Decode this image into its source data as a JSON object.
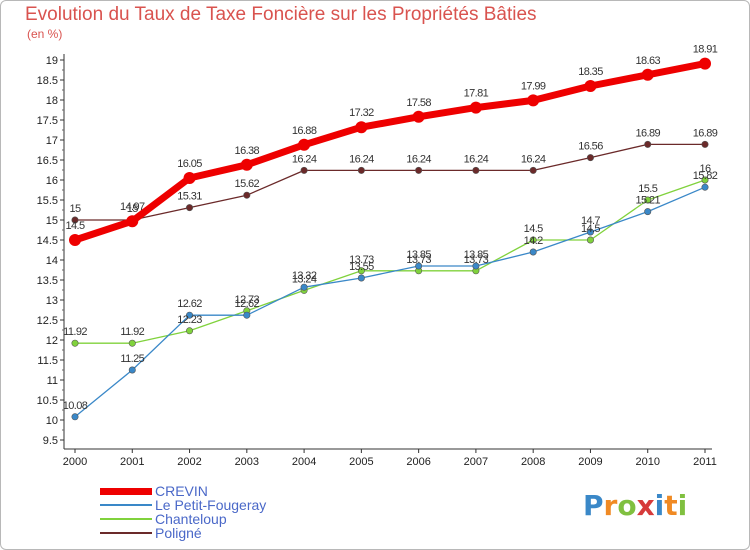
{
  "chart_data": {
    "type": "line",
    "title": "Evolution du Taux de Taxe Foncière sur les Propriétés Bâties",
    "subtitle": "(en %)",
    "xlabel": "",
    "ylabel": "",
    "categories": [
      "2000",
      "2001",
      "2002",
      "2003",
      "2004",
      "2005",
      "2006",
      "2007",
      "2008",
      "2009",
      "2010",
      "2011"
    ],
    "ylim": [
      9.5,
      19
    ],
    "yticks": [
      9.5,
      10,
      10.5,
      11,
      11.5,
      12,
      12.5,
      13,
      13.5,
      14,
      14.5,
      15,
      15.5,
      16,
      16.5,
      17,
      17.5,
      18,
      18.5,
      19
    ],
    "grid": false,
    "legend_position": "bottom-left",
    "series": [
      {
        "name": "CREVIN",
        "color": "#ee0000",
        "values": [
          14.5,
          14.97,
          16.05,
          16.38,
          16.88,
          17.32,
          17.58,
          17.81,
          17.99,
          18.35,
          18.63,
          18.91
        ],
        "labels": [
          "14.5",
          "14.97",
          "16.05",
          "16.38",
          "16.88",
          "17.32",
          "17.58",
          "17.81",
          "17.99",
          "18.35",
          "18.63",
          "18.91"
        ]
      },
      {
        "name": "Le Petit-Fougeray",
        "color": "#3a88c8",
        "values": [
          10.08,
          11.25,
          12.62,
          12.62,
          13.32,
          13.55,
          13.85,
          13.85,
          14.2,
          14.7,
          15.21,
          15.82
        ],
        "labels": [
          "10.08",
          "11.25",
          "12.62",
          "12.62",
          "13.32",
          "13.55",
          "13.85",
          "13.85",
          "14.2",
          "14.7",
          "15.21",
          "15.82"
        ]
      },
      {
        "name": "Chanteloup",
        "color": "#80d23c",
        "values": [
          11.92,
          11.92,
          12.23,
          12.73,
          13.24,
          13.73,
          13.73,
          13.73,
          14.5,
          14.5,
          15.5,
          16
        ],
        "labels": [
          "11.92",
          "11.92",
          "12.23",
          "12.73",
          "13.24",
          "13.73",
          "13.73",
          "13.73",
          "14.5",
          "14.5",
          "15.5",
          "16"
        ]
      },
      {
        "name": "Poligné",
        "color": "#6b2a2a",
        "values": [
          15,
          15,
          15.31,
          15.62,
          16.24,
          16.24,
          16.24,
          16.24,
          16.24,
          16.56,
          16.89,
          16.89
        ],
        "labels": [
          "15",
          "15",
          "15.31",
          "15.62",
          "16.24",
          "16.24",
          "16.24",
          "16.24",
          "16.24",
          "16.56",
          "16.89",
          "16.89"
        ]
      }
    ]
  },
  "logo": {
    "letters": [
      "P",
      "r",
      "o",
      "x",
      "i",
      "t",
      "i"
    ],
    "colors": [
      "#3a88c8",
      "#f08a24",
      "#80c040",
      "#d63a3a",
      "#3a88c8",
      "#f08a24",
      "#80c040"
    ]
  }
}
